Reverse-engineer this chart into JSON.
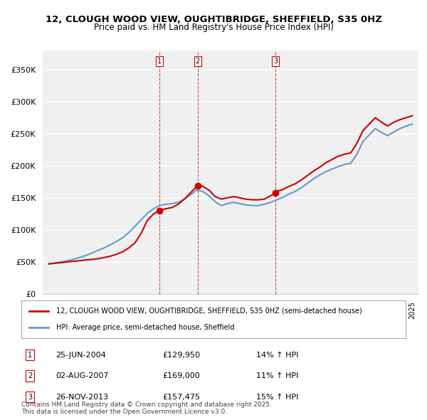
{
  "title": "12, CLOUGH WOOD VIEW, OUGHTIBRIDGE, SHEFFIELD, S35 0HZ",
  "subtitle": "Price paid vs. HM Land Registry's House Price Index (HPI)",
  "ylabel": "",
  "ylim": [
    0,
    380000
  ],
  "yticks": [
    0,
    50000,
    100000,
    150000,
    200000,
    250000,
    300000,
    350000
  ],
  "ytick_labels": [
    "£0",
    "£50K",
    "£100K",
    "£150K",
    "£200K",
    "£250K",
    "£300K",
    "£350K"
  ],
  "xlim_start": 1995.5,
  "xlim_end": 2025.5,
  "background_color": "#ffffff",
  "plot_bg_color": "#f0f0f0",
  "grid_color": "#ffffff",
  "property_color": "#cc0000",
  "hpi_color": "#6699cc",
  "vline_color": "#cc0000",
  "sale_dates_decimal": [
    2004.48,
    2007.58,
    2013.9
  ],
  "sale_prices": [
    129950,
    169000,
    157475
  ],
  "sale_labels": [
    "1",
    "2",
    "3"
  ],
  "legend_property": "12, CLOUGH WOOD VIEW, OUGHTIBRIDGE, SHEFFIELD, S35 0HZ (semi-detached house)",
  "legend_hpi": "HPI: Average price, semi-detached house, Sheffield",
  "table_entries": [
    {
      "num": "1",
      "date": "25-JUN-2004",
      "price": "£129,950",
      "hpi": "14% ↑ HPI"
    },
    {
      "num": "2",
      "date": "02-AUG-2007",
      "price": "£169,000",
      "hpi": "11% ↑ HPI"
    },
    {
      "num": "3",
      "date": "26-NOV-2013",
      "price": "£157,475",
      "hpi": "15% ↑ HPI"
    }
  ],
  "footnote": "Contains HM Land Registry data © Crown copyright and database right 2025.\nThis data is licensed under the Open Government Licence v3.0.",
  "property_data_x": [
    1995.5,
    1996.0,
    1996.5,
    1997.0,
    1997.5,
    1998.0,
    1998.5,
    1999.0,
    1999.5,
    2000.0,
    2000.5,
    2001.0,
    2001.5,
    2002.0,
    2002.5,
    2003.0,
    2003.5,
    2004.0,
    2004.48,
    2004.5,
    2005.0,
    2005.5,
    2006.0,
    2006.5,
    2007.0,
    2007.58,
    2008.0,
    2008.5,
    2009.0,
    2009.5,
    2010.0,
    2010.5,
    2011.0,
    2011.5,
    2012.0,
    2012.5,
    2013.0,
    2013.9,
    2014.0,
    2014.5,
    2015.0,
    2015.5,
    2016.0,
    2016.5,
    2017.0,
    2017.5,
    2018.0,
    2018.5,
    2019.0,
    2019.5,
    2020.0,
    2020.5,
    2021.0,
    2021.5,
    2022.0,
    2022.5,
    2023.0,
    2023.5,
    2024.0,
    2024.5,
    2025.0
  ],
  "property_data_y": [
    47000,
    48000,
    49000,
    50000,
    51000,
    52000,
    53000,
    54000,
    55000,
    57000,
    59000,
    62000,
    66000,
    72000,
    80000,
    95000,
    115000,
    125000,
    129950,
    131000,
    133000,
    135000,
    140000,
    148000,
    158000,
    169000,
    168000,
    162000,
    152000,
    148000,
    150000,
    152000,
    150000,
    148000,
    147000,
    147000,
    148000,
    157475,
    160000,
    163000,
    168000,
    172000,
    178000,
    185000,
    192000,
    198000,
    205000,
    210000,
    215000,
    218000,
    220000,
    235000,
    255000,
    265000,
    275000,
    268000,
    262000,
    268000,
    272000,
    275000,
    278000
  ],
  "hpi_data_x": [
    1995.5,
    1996.0,
    1996.5,
    1997.0,
    1997.5,
    1998.0,
    1998.5,
    1999.0,
    1999.5,
    2000.0,
    2000.5,
    2001.0,
    2001.5,
    2002.0,
    2002.5,
    2003.0,
    2003.5,
    2004.0,
    2004.5,
    2005.0,
    2005.5,
    2006.0,
    2006.5,
    2007.0,
    2007.5,
    2008.0,
    2008.5,
    2009.0,
    2009.5,
    2010.0,
    2010.5,
    2011.0,
    2011.5,
    2012.0,
    2012.5,
    2013.0,
    2013.5,
    2014.0,
    2014.5,
    2015.0,
    2015.5,
    2016.0,
    2016.5,
    2017.0,
    2017.5,
    2018.0,
    2018.5,
    2019.0,
    2019.5,
    2020.0,
    2020.5,
    2021.0,
    2021.5,
    2022.0,
    2022.5,
    2023.0,
    2023.5,
    2024.0,
    2024.5,
    2025.0
  ],
  "hpi_data_y": [
    47000,
    48500,
    50000,
    52000,
    54000,
    57000,
    60000,
    64000,
    68000,
    72000,
    77000,
    82000,
    88000,
    96000,
    106000,
    116000,
    126000,
    133000,
    138000,
    140000,
    141000,
    143000,
    148000,
    155000,
    162000,
    160000,
    153000,
    144000,
    138000,
    141000,
    143000,
    141000,
    139000,
    138000,
    138000,
    140000,
    143000,
    147000,
    151000,
    156000,
    160000,
    166000,
    173000,
    180000,
    186000,
    191000,
    195000,
    199000,
    202000,
    204000,
    218000,
    238000,
    248000,
    258000,
    252000,
    247000,
    253000,
    258000,
    262000,
    265000
  ]
}
